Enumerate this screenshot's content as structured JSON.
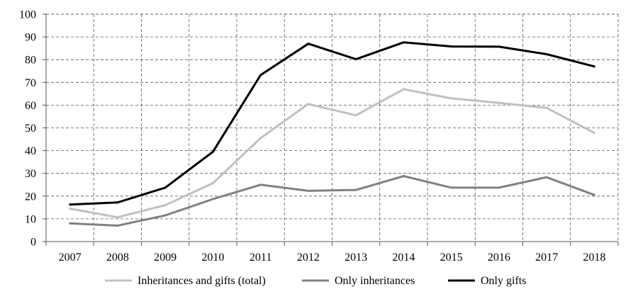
{
  "chart_data": {
    "type": "line",
    "title": "",
    "xlabel": "",
    "ylabel": "",
    "ylim": [
      0,
      100
    ],
    "yticks": [
      0,
      10,
      20,
      30,
      40,
      50,
      60,
      70,
      80,
      90,
      100
    ],
    "grid": true,
    "legend_position": "bottom",
    "categories": [
      "2007",
      "2008",
      "2009",
      "2010",
      "2011",
      "2012",
      "2013",
      "2014",
      "2015",
      "2016",
      "2017",
      "2018"
    ],
    "series": [
      {
        "name": "Inheritances and gifts (total)",
        "color": "#c0c0c0",
        "values": [
          14.5,
          10.7,
          16.0,
          25.7,
          45.5,
          60.5,
          55.5,
          67.0,
          63.0,
          61.0,
          58.8,
          47.8
        ]
      },
      {
        "name": "Only inheritances",
        "color": "#808080",
        "values": [
          8.0,
          7.0,
          11.5,
          18.7,
          25.0,
          22.3,
          22.7,
          28.8,
          23.7,
          23.7,
          28.3,
          20.5
        ]
      },
      {
        "name": "Only gifts",
        "color": "#000000",
        "values": [
          16.3,
          17.2,
          23.7,
          39.5,
          73.2,
          87.0,
          80.2,
          87.6,
          85.8,
          85.7,
          82.4,
          77.0
        ]
      }
    ]
  }
}
